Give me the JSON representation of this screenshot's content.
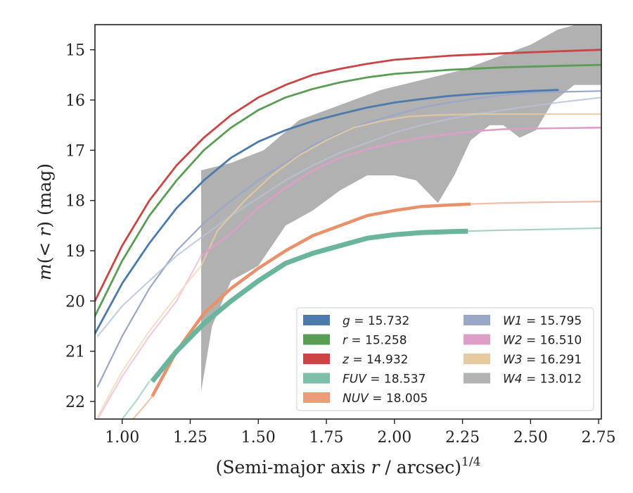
{
  "chart_data": {
    "type": "line",
    "title": "",
    "xlabel": "(Semi-major axis r / arcsec)",
    "xlabel_main": "(Semi-major axis ",
    "xlabel_var": "r",
    "xlabel_tail": " / arcsec)",
    "xlabel_exp": "1/4",
    "ylabel": "m(< r) (mag)",
    "ylabel_m": "m",
    "ylabel_open": "(",
    "ylabel_lt": "< ",
    "ylabel_r": "r",
    "ylabel_tail": ") (mag)",
    "xlim": [
      0.9,
      2.76
    ],
    "ylim": [
      22.35,
      14.5
    ],
    "y_inverted": true,
    "grid": false,
    "legend_position": "lower-right",
    "xticks": [
      1.0,
      1.25,
      1.5,
      1.75,
      2.0,
      2.25,
      2.5,
      2.75
    ],
    "xtick_labels": [
      "1.00",
      "1.25",
      "1.50",
      "1.75",
      "2.00",
      "2.25",
      "2.50",
      "2.75"
    ],
    "yticks": [
      15,
      16,
      17,
      18,
      19,
      20,
      21,
      22
    ],
    "ytick_labels": [
      "15",
      "16",
      "17",
      "18",
      "19",
      "20",
      "21",
      "22"
    ],
    "series": [
      {
        "key": "W4",
        "name": "W4",
        "label_var": "W4",
        "label_value": "= 13.012",
        "color": "#a9a9a9",
        "band": true,
        "upper": [
          [
            1.29,
            17.4
          ],
          [
            1.4,
            17.25
          ],
          [
            1.52,
            17.0
          ],
          [
            1.65,
            16.4
          ],
          [
            1.8,
            16.1
          ],
          [
            1.95,
            15.8
          ],
          [
            2.1,
            15.6
          ],
          [
            2.25,
            15.4
          ],
          [
            2.4,
            15.1
          ],
          [
            2.5,
            14.9
          ],
          [
            2.6,
            14.6
          ],
          [
            2.7,
            14.45
          ],
          [
            2.76,
            14.45
          ]
        ],
        "lower": [
          [
            1.29,
            21.8
          ],
          [
            1.33,
            20.5
          ],
          [
            1.4,
            19.6
          ],
          [
            1.5,
            19.3
          ],
          [
            1.6,
            18.5
          ],
          [
            1.7,
            18.2
          ],
          [
            1.8,
            17.8
          ],
          [
            1.9,
            17.5
          ],
          [
            2.0,
            17.5
          ],
          [
            2.08,
            17.6
          ],
          [
            2.16,
            18.05
          ],
          [
            2.22,
            17.5
          ],
          [
            2.28,
            16.8
          ],
          [
            2.35,
            16.5
          ],
          [
            2.4,
            16.5
          ],
          [
            2.46,
            16.75
          ],
          [
            2.52,
            16.6
          ],
          [
            2.58,
            16.05
          ],
          [
            2.66,
            15.7
          ],
          [
            2.76,
            15.7
          ]
        ]
      },
      {
        "key": "W1",
        "name": "W1",
        "label_var": "W1",
        "label_value": "= 15.795",
        "color": "#9aa8c8",
        "points": [
          [
            0.91,
            21.7
          ],
          [
            1.0,
            20.7
          ],
          [
            1.1,
            19.75
          ],
          [
            1.2,
            19.0
          ],
          [
            1.3,
            18.45
          ],
          [
            1.4,
            18.0
          ],
          [
            1.5,
            17.6
          ],
          [
            1.6,
            17.25
          ],
          [
            1.7,
            16.9
          ],
          [
            1.8,
            16.65
          ],
          [
            1.9,
            16.45
          ],
          [
            2.0,
            16.3
          ],
          [
            2.1,
            16.15
          ],
          [
            2.2,
            16.05
          ],
          [
            2.3,
            15.97
          ],
          [
            2.4,
            15.9
          ],
          [
            2.5,
            15.86
          ],
          [
            2.6,
            15.84
          ],
          [
            2.76,
            15.82
          ]
        ]
      },
      {
        "key": "W1b",
        "color": "#b8c2d8",
        "points": [
          [
            0.91,
            20.7
          ],
          [
            1.0,
            20.1
          ],
          [
            1.1,
            19.6
          ],
          [
            1.2,
            19.1
          ],
          [
            1.3,
            18.7
          ],
          [
            1.4,
            18.3
          ],
          [
            1.5,
            17.95
          ],
          [
            1.6,
            17.6
          ],
          [
            1.7,
            17.3
          ],
          [
            1.8,
            17.05
          ],
          [
            1.9,
            16.85
          ],
          [
            2.0,
            16.65
          ],
          [
            2.1,
            16.5
          ],
          [
            2.2,
            16.38
          ],
          [
            2.3,
            16.28
          ],
          [
            2.4,
            16.2
          ],
          [
            2.5,
            16.12
          ],
          [
            2.6,
            16.05
          ],
          [
            2.76,
            15.95
          ]
        ]
      },
      {
        "key": "W3",
        "name": "W3",
        "label_var": "W3",
        "label_value": "= 16.291",
        "color": "#e6caa0",
        "points": [
          [
            1.29,
            19.3
          ],
          [
            1.35,
            18.6
          ],
          [
            1.45,
            18.0
          ],
          [
            1.55,
            17.5
          ],
          [
            1.65,
            17.1
          ],
          [
            1.75,
            16.8
          ],
          [
            1.85,
            16.55
          ],
          [
            1.95,
            16.42
          ],
          [
            2.05,
            16.33
          ],
          [
            2.15,
            16.3
          ],
          [
            2.3,
            16.28
          ],
          [
            2.5,
            16.28
          ],
          [
            2.76,
            16.28
          ]
        ]
      },
      {
        "key": "W2",
        "name": "W2",
        "label_var": "W2",
        "label_value": "= 16.510",
        "color": "#dca0c8",
        "points": [
          [
            1.29,
            19.1
          ],
          [
            1.4,
            18.65
          ],
          [
            1.5,
            18.15
          ],
          [
            1.6,
            17.75
          ],
          [
            1.7,
            17.4
          ],
          [
            1.8,
            17.15
          ],
          [
            1.9,
            16.98
          ],
          [
            2.0,
            16.85
          ],
          [
            2.1,
            16.75
          ],
          [
            2.2,
            16.68
          ],
          [
            2.3,
            16.62
          ],
          [
            2.4,
            16.58
          ],
          [
            2.5,
            16.57
          ],
          [
            2.6,
            16.56
          ],
          [
            2.76,
            16.55
          ]
        ]
      },
      {
        "key": "g",
        "name": "g",
        "label_var": "g",
        "label_value": "= 15.732",
        "color": "#4c7aab",
        "points": [
          [
            0.9,
            20.65
          ],
          [
            1.0,
            19.65
          ],
          [
            1.1,
            18.85
          ],
          [
            1.2,
            18.15
          ],
          [
            1.3,
            17.6
          ],
          [
            1.4,
            17.15
          ],
          [
            1.5,
            16.83
          ],
          [
            1.6,
            16.6
          ],
          [
            1.7,
            16.42
          ],
          [
            1.8,
            16.28
          ],
          [
            1.9,
            16.15
          ],
          [
            2.0,
            16.05
          ],
          [
            2.1,
            15.98
          ],
          [
            2.2,
            15.92
          ],
          [
            2.3,
            15.88
          ],
          [
            2.4,
            15.85
          ],
          [
            2.5,
            15.82
          ],
          [
            2.6,
            15.8
          ]
        ]
      },
      {
        "key": "r",
        "name": "r",
        "label_var": "r",
        "label_value": "= 15.258",
        "color": "#5a9e55",
        "points": [
          [
            0.9,
            20.3
          ],
          [
            1.0,
            19.2
          ],
          [
            1.1,
            18.3
          ],
          [
            1.2,
            17.6
          ],
          [
            1.3,
            17.0
          ],
          [
            1.4,
            16.55
          ],
          [
            1.5,
            16.2
          ],
          [
            1.6,
            15.95
          ],
          [
            1.7,
            15.78
          ],
          [
            1.8,
            15.65
          ],
          [
            1.9,
            15.55
          ],
          [
            2.0,
            15.48
          ],
          [
            2.2,
            15.4
          ],
          [
            2.4,
            15.35
          ],
          [
            2.6,
            15.32
          ],
          [
            2.76,
            15.3
          ]
        ]
      },
      {
        "key": "z",
        "name": "z",
        "label_var": "z",
        "label_value": "= 14.932",
        "color": "#cc4444",
        "points": [
          [
            0.9,
            20.0
          ],
          [
            1.0,
            18.9
          ],
          [
            1.1,
            18.0
          ],
          [
            1.2,
            17.3
          ],
          [
            1.3,
            16.75
          ],
          [
            1.4,
            16.3
          ],
          [
            1.5,
            15.95
          ],
          [
            1.6,
            15.7
          ],
          [
            1.7,
            15.5
          ],
          [
            1.8,
            15.38
          ],
          [
            1.9,
            15.28
          ],
          [
            2.0,
            15.2
          ],
          [
            2.2,
            15.12
          ],
          [
            2.4,
            15.07
          ],
          [
            2.6,
            15.03
          ],
          [
            2.76,
            15.0
          ]
        ]
      },
      {
        "key": "NUV",
        "name": "NUV",
        "label_var": "NUV",
        "label_value": "= 18.005",
        "color": "#e8916a",
        "points": [
          [
            1.11,
            21.9
          ],
          [
            1.2,
            21.0
          ],
          [
            1.3,
            20.25
          ],
          [
            1.4,
            19.75
          ],
          [
            1.5,
            19.35
          ],
          [
            1.6,
            19.0
          ],
          [
            1.7,
            18.7
          ],
          [
            1.8,
            18.5
          ],
          [
            1.9,
            18.3
          ],
          [
            2.0,
            18.2
          ],
          [
            2.1,
            18.12
          ],
          [
            2.2,
            18.09
          ],
          [
            2.28,
            18.07
          ],
          [
            2.4,
            18.05
          ],
          [
            2.5,
            18.04
          ],
          [
            2.76,
            18.02
          ]
        ],
        "thick_until": 2.28
      },
      {
        "key": "FUV",
        "name": "FUV",
        "label_var": "FUV",
        "label_value": "= 18.537",
        "color": "#6ab59c",
        "points": [
          [
            1.11,
            21.6
          ],
          [
            1.2,
            21.0
          ],
          [
            1.3,
            20.45
          ],
          [
            1.4,
            20.0
          ],
          [
            1.5,
            19.6
          ],
          [
            1.6,
            19.25
          ],
          [
            1.7,
            19.05
          ],
          [
            1.8,
            18.9
          ],
          [
            1.9,
            18.75
          ],
          [
            2.0,
            18.68
          ],
          [
            2.1,
            18.64
          ],
          [
            2.2,
            18.62
          ],
          [
            2.27,
            18.61
          ],
          [
            2.4,
            18.59
          ],
          [
            2.5,
            18.58
          ],
          [
            2.76,
            18.55
          ]
        ],
        "thick_until": 2.27
      },
      {
        "key": "FUVfaint",
        "color": "#a8d6c6",
        "points": [
          [
            1.0,
            22.35
          ],
          [
            1.05,
            22.0
          ],
          [
            1.1,
            21.6
          ]
        ]
      },
      {
        "key": "NUVfaint",
        "color": "#f2bca2",
        "points": [
          [
            1.04,
            22.35
          ],
          [
            1.08,
            22.1
          ],
          [
            1.11,
            21.9
          ]
        ]
      },
      {
        "key": "W2faint",
        "color": "#eec2dc",
        "points": [
          [
            0.91,
            22.35
          ],
          [
            1.0,
            21.5
          ],
          [
            1.1,
            20.7
          ],
          [
            1.2,
            20.0
          ],
          [
            1.29,
            19.1
          ]
        ]
      },
      {
        "key": "W3faint",
        "color": "#f0dec0",
        "points": [
          [
            0.91,
            22.3
          ],
          [
            1.0,
            21.4
          ],
          [
            1.1,
            20.6
          ],
          [
            1.2,
            19.9
          ],
          [
            1.29,
            19.3
          ]
        ]
      }
    ],
    "legend": [
      {
        "key": "g",
        "label_var": "g",
        "label_value": "= 15.732",
        "color": "#4c7aab"
      },
      {
        "key": "r",
        "label_var": "r",
        "label_value": "= 15.258",
        "color": "#5a9e55"
      },
      {
        "key": "z",
        "label_var": "z",
        "label_value": "= 14.932",
        "color": "#cc4444"
      },
      {
        "key": "FUV",
        "label_var": "FUV",
        "label_value": "= 18.537",
        "color": "#7dbfa9"
      },
      {
        "key": "NUV",
        "label_var": "NUV",
        "label_value": "= 18.005",
        "color": "#eb9d7a"
      },
      {
        "key": "W1",
        "label_var": "W1",
        "label_value": "= 15.795",
        "color": "#9aa8c8"
      },
      {
        "key": "W2",
        "label_var": "W2",
        "label_value": "= 16.510",
        "color": "#dca0c8"
      },
      {
        "key": "W3",
        "label_var": "W3",
        "label_value": "= 16.291",
        "color": "#e6caa0"
      },
      {
        "key": "W4",
        "label_var": "W4",
        "label_value": "= 13.012",
        "color": "#b3b3b3"
      }
    ]
  }
}
